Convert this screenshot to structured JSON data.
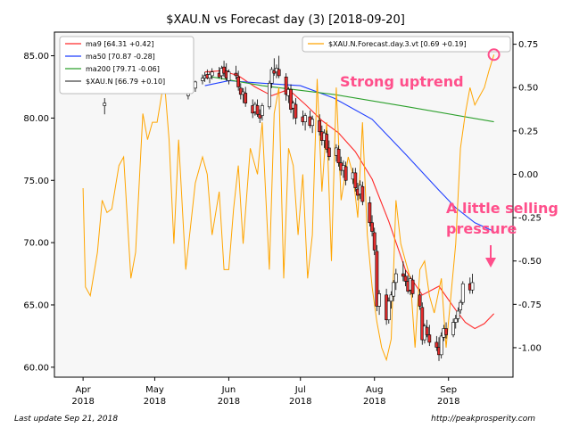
{
  "chart_data": {
    "type": "candlestick-line",
    "title": "$XAU.N vs Forecast day (3)  [2018-09-20]",
    "x_ticks": [
      {
        "date": "2018-04-01",
        "label": "Apr",
        "year": "2018"
      },
      {
        "date": "2018-05-01",
        "label": "May",
        "year": "2018"
      },
      {
        "date": "2018-06-01",
        "label": "Jun",
        "year": "2018"
      },
      {
        "date": "2018-07-01",
        "label": "Jul",
        "year": "2018"
      },
      {
        "date": "2018-08-01",
        "label": "Aug",
        "year": "2018"
      },
      {
        "date": "2018-09-01",
        "label": "Sep",
        "year": "2018"
      }
    ],
    "x_range": [
      "2018-03-20",
      "2018-09-28"
    ],
    "y_left": {
      "ticks": [
        "60.00",
        "65.00",
        "70.00",
        "75.00",
        "80.00",
        "85.00"
      ],
      "lim": [
        59.2,
        86.9
      ]
    },
    "y_right": {
      "ticks": [
        "-1.00",
        "-0.75",
        "-0.50",
        "-0.25",
        "0.00",
        "0.25",
        "0.50",
        "0.75"
      ],
      "lim": [
        -1.17,
        0.82
      ]
    },
    "legend_left": {
      "position": "top-left",
      "entries": [
        {
          "label": "ma9 [64.31 +0.42]",
          "color": "#ff2a2a"
        },
        {
          "label": "ma50 [70.87 -0.28]",
          "color": "#1f3fff"
        },
        {
          "label": "ma200 [79.71 -0.06]",
          "color": "#2ca02c"
        },
        {
          "label": "$XAU.N [66.79 +0.10]",
          "color": "#444444"
        }
      ]
    },
    "legend_right": {
      "position": "top-right",
      "entries": [
        {
          "label": "$XAU.N.Forecast.day.3.vt [0.69 +0.19]",
          "color": "#ffa500"
        }
      ]
    },
    "series": [
      {
        "name": "ma9",
        "color": "#ff2a2a",
        "axis": "left",
        "points": [
          [
            "2018-05-22",
            83.7
          ],
          [
            "2018-05-29",
            83.8
          ],
          [
            "2018-06-05",
            83.4
          ],
          [
            "2018-06-12",
            82.5
          ],
          [
            "2018-06-19",
            81.8
          ],
          [
            "2018-06-26",
            82.3
          ],
          [
            "2018-07-03",
            81.1
          ],
          [
            "2018-07-10",
            79.8
          ],
          [
            "2018-07-17",
            78.8
          ],
          [
            "2018-07-24",
            77.3
          ],
          [
            "2018-07-31",
            75.1
          ],
          [
            "2018-08-07",
            71.7
          ],
          [
            "2018-08-14",
            67.8
          ],
          [
            "2018-08-21",
            65.8
          ],
          [
            "2018-08-28",
            66.5
          ],
          [
            "2018-09-04",
            64.6
          ],
          [
            "2018-09-08",
            63.6
          ],
          [
            "2018-09-12",
            63.1
          ],
          [
            "2018-09-16",
            63.5
          ],
          [
            "2018-09-20",
            64.3
          ]
        ]
      },
      {
        "name": "ma50",
        "color": "#1f3fff",
        "axis": "left",
        "points": [
          [
            "2018-05-22",
            82.6
          ],
          [
            "2018-06-01",
            83.0
          ],
          [
            "2018-06-15",
            82.8
          ],
          [
            "2018-07-01",
            82.6
          ],
          [
            "2018-07-15",
            81.6
          ],
          [
            "2018-07-31",
            79.9
          ],
          [
            "2018-08-14",
            77.1
          ],
          [
            "2018-08-28",
            74.2
          ],
          [
            "2018-09-04",
            72.8
          ],
          [
            "2018-09-12",
            71.6
          ],
          [
            "2018-09-20",
            70.9
          ]
        ]
      },
      {
        "name": "ma200",
        "color": "#2ca02c",
        "axis": "left",
        "points": [
          [
            "2018-05-22",
            83.4
          ],
          [
            "2018-06-15",
            82.6
          ],
          [
            "2018-07-15",
            81.9
          ],
          [
            "2018-08-15",
            80.9
          ],
          [
            "2018-09-20",
            79.7
          ]
        ]
      },
      {
        "name": "$XAU.N.Forecast.day.3.vt",
        "color": "#ffa500",
        "axis": "right",
        "points": [
          [
            "2018-04-01",
            -0.08
          ],
          [
            "2018-04-02",
            -0.65
          ],
          [
            "2018-04-04",
            -0.7
          ],
          [
            "2018-04-07",
            -0.45
          ],
          [
            "2018-04-09",
            -0.15
          ],
          [
            "2018-04-11",
            -0.22
          ],
          [
            "2018-04-13",
            -0.2
          ],
          [
            "2018-04-16",
            0.05
          ],
          [
            "2018-04-18",
            0.1
          ],
          [
            "2018-04-21",
            -0.6
          ],
          [
            "2018-04-23",
            -0.45
          ],
          [
            "2018-04-26",
            0.35
          ],
          [
            "2018-04-28",
            0.2
          ],
          [
            "2018-04-30",
            0.3
          ],
          [
            "2018-05-02",
            0.3
          ],
          [
            "2018-05-05",
            0.55
          ],
          [
            "2018-05-07",
            0.2
          ],
          [
            "2018-05-09",
            -0.4
          ],
          [
            "2018-05-11",
            0.2
          ],
          [
            "2018-05-14",
            -0.55
          ],
          [
            "2018-05-16",
            -0.3
          ],
          [
            "2018-05-18",
            -0.05
          ],
          [
            "2018-05-21",
            0.1
          ],
          [
            "2018-05-23",
            0.0
          ],
          [
            "2018-05-25",
            -0.35
          ],
          [
            "2018-05-28",
            -0.1
          ],
          [
            "2018-05-30",
            -0.55
          ],
          [
            "2018-06-01",
            -0.55
          ],
          [
            "2018-06-03",
            -0.2
          ],
          [
            "2018-06-05",
            0.05
          ],
          [
            "2018-06-07",
            -0.4
          ],
          [
            "2018-06-10",
            0.15
          ],
          [
            "2018-06-13",
            0.0
          ],
          [
            "2018-06-15",
            0.3
          ],
          [
            "2018-06-18",
            -0.55
          ],
          [
            "2018-06-20",
            0.35
          ],
          [
            "2018-06-22",
            0.5
          ],
          [
            "2018-06-24",
            -0.6
          ],
          [
            "2018-06-26",
            0.15
          ],
          [
            "2018-06-28",
            0.05
          ],
          [
            "2018-06-30",
            -0.35
          ],
          [
            "2018-07-02",
            0.0
          ],
          [
            "2018-07-04",
            -0.6
          ],
          [
            "2018-07-06",
            -0.35
          ],
          [
            "2018-07-08",
            0.55
          ],
          [
            "2018-07-10",
            -0.1
          ],
          [
            "2018-07-12",
            0.3
          ],
          [
            "2018-07-14",
            -0.5
          ],
          [
            "2018-07-16",
            0.5
          ],
          [
            "2018-07-18",
            -0.15
          ],
          [
            "2018-07-21",
            0.1
          ],
          [
            "2018-07-23",
            0.0
          ],
          [
            "2018-07-25",
            -0.25
          ],
          [
            "2018-07-27",
            0.3
          ],
          [
            "2018-07-29",
            -0.35
          ],
          [
            "2018-07-31",
            -0.65
          ],
          [
            "2018-08-02",
            -0.85
          ],
          [
            "2018-08-04",
            -1.0
          ],
          [
            "2018-08-06",
            -1.07
          ],
          [
            "2018-08-08",
            -0.95
          ],
          [
            "2018-08-10",
            -0.15
          ],
          [
            "2018-08-12",
            -0.4
          ],
          [
            "2018-08-14",
            -0.5
          ],
          [
            "2018-08-16",
            -0.6
          ],
          [
            "2018-08-18",
            -1.0
          ],
          [
            "2018-08-20",
            -0.55
          ],
          [
            "2018-08-22",
            -0.5
          ],
          [
            "2018-08-24",
            -0.7
          ],
          [
            "2018-08-26",
            -0.8
          ],
          [
            "2018-08-29",
            -0.6
          ],
          [
            "2018-08-31",
            -1.0
          ],
          [
            "2018-09-02",
            -0.7
          ],
          [
            "2018-09-04",
            -0.4
          ],
          [
            "2018-09-06",
            0.15
          ],
          [
            "2018-09-08",
            0.35
          ],
          [
            "2018-09-10",
            0.5
          ],
          [
            "2018-09-12",
            0.4
          ],
          [
            "2018-09-14",
            0.45
          ],
          [
            "2018-09-16",
            0.5
          ],
          [
            "2018-09-18",
            0.6
          ],
          [
            "2018-09-20",
            0.69
          ]
        ]
      }
    ],
    "candles": [
      [
        "2018-04-10",
        81.0,
        81.6,
        80.3,
        81.2
      ],
      [
        "2018-05-15",
        81.8,
        82.7,
        81.5,
        82.5
      ],
      [
        "2018-05-18",
        82.4,
        83.0,
        82.1,
        82.9
      ],
      [
        "2018-05-21",
        83.0,
        83.5,
        82.7,
        83.2
      ],
      [
        "2018-05-22",
        83.2,
        83.7,
        82.9,
        83.4
      ],
      [
        "2018-05-23",
        83.5,
        83.9,
        83.1,
        83.2
      ],
      [
        "2018-05-24",
        83.2,
        83.7,
        82.8,
        83.5
      ],
      [
        "2018-05-25",
        83.4,
        84.0,
        83.1,
        83.7
      ],
      [
        "2018-05-28",
        83.6,
        84.1,
        83.2,
        83.3
      ],
      [
        "2018-05-29",
        83.4,
        84.2,
        83.1,
        84.0
      ],
      [
        "2018-05-30",
        84.1,
        84.6,
        83.3,
        83.6
      ],
      [
        "2018-05-31",
        83.8,
        84.4,
        83.0,
        83.2
      ],
      [
        "2018-06-01",
        83.0,
        83.9,
        82.7,
        83.7
      ],
      [
        "2018-06-04",
        83.6,
        84.2,
        83.1,
        83.4
      ],
      [
        "2018-06-05",
        83.3,
        83.8,
        82.2,
        82.5
      ],
      [
        "2018-06-06",
        82.4,
        82.8,
        81.5,
        81.9
      ],
      [
        "2018-06-07",
        81.9,
        82.4,
        81.2,
        82.1
      ],
      [
        "2018-06-08",
        82.0,
        82.5,
        80.9,
        81.2
      ],
      [
        "2018-06-11",
        81.0,
        81.5,
        80.0,
        80.4
      ],
      [
        "2018-06-12",
        80.5,
        81.3,
        80.2,
        81.1
      ],
      [
        "2018-06-13",
        81.0,
        81.5,
        80.1,
        80.3
      ],
      [
        "2018-06-14",
        80.3,
        80.7,
        79.6,
        80.0
      ],
      [
        "2018-06-15",
        80.2,
        81.2,
        79.8,
        81.0
      ],
      [
        "2018-06-18",
        80.9,
        83.0,
        80.7,
        82.8
      ],
      [
        "2018-06-19",
        82.8,
        84.1,
        82.4,
        83.9
      ],
      [
        "2018-06-20",
        83.8,
        84.8,
        83.4,
        83.6
      ],
      [
        "2018-06-21",
        83.7,
        84.3,
        83.2,
        84.0
      ],
      [
        "2018-06-22",
        83.9,
        85.0,
        83.2,
        83.4
      ],
      [
        "2018-06-25",
        83.3,
        83.6,
        81.4,
        81.9
      ],
      [
        "2018-06-26",
        81.8,
        82.5,
        81.2,
        82.3
      ],
      [
        "2018-06-27",
        82.3,
        82.7,
        80.4,
        80.7
      ],
      [
        "2018-06-28",
        80.8,
        81.4,
        79.9,
        81.2
      ],
      [
        "2018-06-29",
        81.1,
        81.6,
        79.5,
        80.0
      ],
      [
        "2018-07-02",
        80.1,
        80.6,
        79.4,
        79.7
      ],
      [
        "2018-07-03",
        79.7,
        80.4,
        79.0,
        80.2
      ],
      [
        "2018-07-05",
        80.1,
        80.6,
        79.2,
        79.4
      ],
      [
        "2018-07-06",
        79.4,
        80.2,
        78.8,
        79.9
      ],
      [
        "2018-07-09",
        79.8,
        80.3,
        78.6,
        78.9
      ],
      [
        "2018-07-10",
        78.9,
        79.4,
        77.8,
        78.2
      ],
      [
        "2018-07-11",
        78.2,
        79.1,
        77.6,
        78.8
      ],
      [
        "2018-07-12",
        78.7,
        79.0,
        77.2,
        77.5
      ],
      [
        "2018-07-13",
        77.6,
        78.2,
        76.6,
        76.9
      ],
      [
        "2018-07-16",
        77.0,
        77.9,
        76.5,
        77.6
      ],
      [
        "2018-07-17",
        77.5,
        77.8,
        76.1,
        76.4
      ],
      [
        "2018-07-18",
        76.4,
        76.9,
        75.4,
        75.8
      ],
      [
        "2018-07-19",
        75.8,
        76.6,
        75.2,
        76.2
      ],
      [
        "2018-07-20",
        76.1,
        76.5,
        74.6,
        75.0
      ],
      [
        "2018-07-23",
        75.1,
        76.0,
        74.7,
        75.6
      ],
      [
        "2018-07-24",
        75.6,
        76.0,
        74.1,
        74.4
      ],
      [
        "2018-07-25",
        74.3,
        74.8,
        73.4,
        73.8
      ],
      [
        "2018-07-26",
        73.9,
        75.0,
        73.5,
        74.6
      ],
      [
        "2018-07-27",
        74.5,
        74.9,
        73.0,
        73.3
      ],
      [
        "2018-07-30",
        73.2,
        73.7,
        71.3,
        71.6
      ],
      [
        "2018-07-31",
        71.6,
        72.2,
        70.5,
        70.9
      ],
      [
        "2018-08-01",
        70.8,
        71.2,
        69.0,
        69.4
      ],
      [
        "2018-08-02",
        69.3,
        69.8,
        64.5,
        64.9
      ],
      [
        "2018-08-03",
        64.9,
        66.2,
        64.2,
        65.9
      ],
      [
        "2018-08-06",
        65.8,
        66.3,
        63.4,
        63.8
      ],
      [
        "2018-08-07",
        63.8,
        65.6,
        63.5,
        65.3
      ],
      [
        "2018-08-08",
        65.3,
        66.1,
        64.7,
        65.8
      ],
      [
        "2018-08-09",
        65.7,
        67.0,
        65.3,
        66.8
      ],
      [
        "2018-08-10",
        66.8,
        67.9,
        66.2,
        67.5
      ],
      [
        "2018-08-13",
        67.5,
        68.5,
        66.9,
        67.3
      ],
      [
        "2018-08-14",
        67.3,
        67.8,
        66.5,
        66.9
      ],
      [
        "2018-08-15",
        66.9,
        67.4,
        65.9,
        66.1
      ],
      [
        "2018-08-16",
        66.2,
        67.3,
        65.8,
        67.1
      ],
      [
        "2018-08-17",
        67.0,
        67.4,
        65.6,
        65.9
      ],
      [
        "2018-08-20",
        65.8,
        66.3,
        64.6,
        64.9
      ],
      [
        "2018-08-21",
        64.8,
        65.2,
        61.8,
        62.2
      ],
      [
        "2018-08-22",
        62.2,
        63.5,
        61.9,
        63.3
      ],
      [
        "2018-08-23",
        63.2,
        63.8,
        62.4,
        62.6
      ],
      [
        "2018-08-24",
        62.6,
        63.4,
        61.7,
        62.0
      ],
      [
        "2018-08-27",
        62.0,
        62.5,
        61.3,
        61.6
      ],
      [
        "2018-08-28",
        61.6,
        62.4,
        60.5,
        61.0
      ],
      [
        "2018-08-29",
        61.0,
        62.8,
        60.7,
        62.5
      ],
      [
        "2018-08-30",
        62.4,
        63.4,
        62.1,
        63.1
      ],
      [
        "2018-08-31",
        63.1,
        63.6,
        62.3,
        62.6
      ],
      [
        "2018-09-03",
        62.6,
        63.9,
        62.4,
        63.6
      ],
      [
        "2018-09-04",
        63.6,
        64.2,
        63.1,
        63.9
      ],
      [
        "2018-09-05",
        63.9,
        64.8,
        63.6,
        64.5
      ],
      [
        "2018-09-06",
        64.6,
        65.4,
        64.3,
        65.2
      ],
      [
        "2018-09-07",
        65.2,
        66.9,
        65.0,
        66.7
      ],
      [
        "2018-09-10",
        66.7,
        67.2,
        65.9,
        66.2
      ],
      [
        "2018-09-11",
        66.2,
        67.5,
        65.9,
        66.79
      ]
    ],
    "annotations": [
      {
        "text": "Strong uptrend",
        "color": "#ff4f8b"
      },
      {
        "text_lines": [
          "A little selling",
          "pressure"
        ],
        "color": "#ff4f8b"
      }
    ],
    "markers": [
      {
        "type": "circle",
        "date": "2018-09-20",
        "value": 0.69,
        "axis": "right",
        "color": "#ff4f8b"
      }
    ]
  },
  "footer": {
    "left": "Last update Sep 21, 2018",
    "right": "http://peakprosperity.com"
  }
}
